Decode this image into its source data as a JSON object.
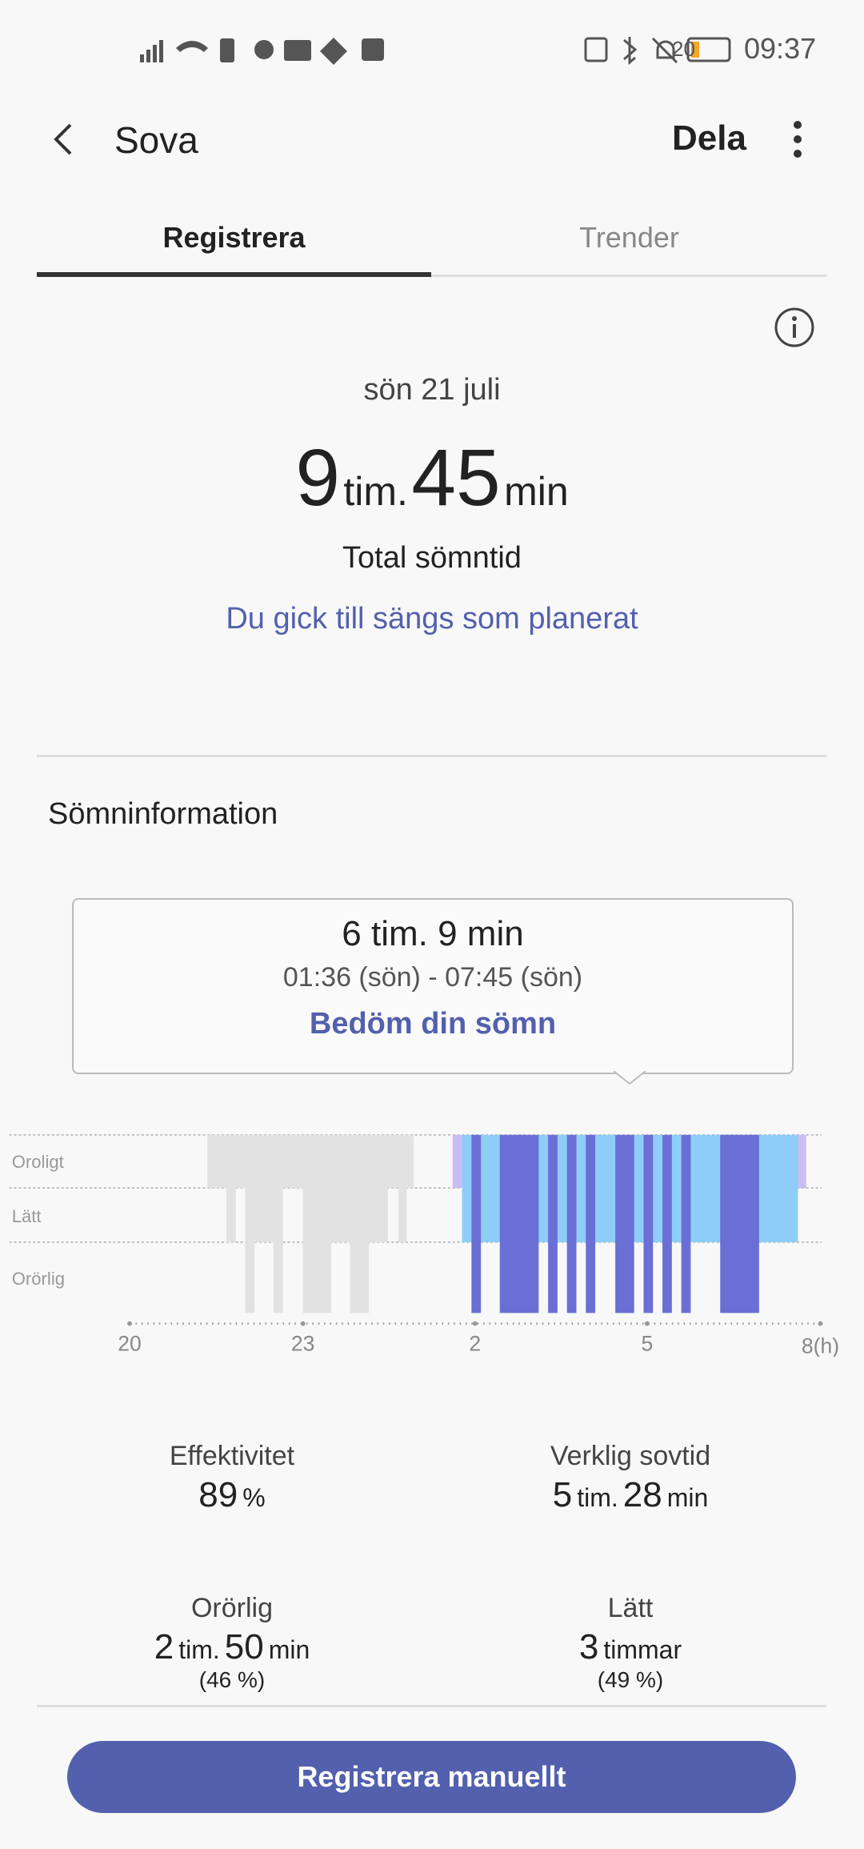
{
  "status_bar": {
    "time": "09:37",
    "battery": "20"
  },
  "header": {
    "title": "Sova",
    "share": "Dela"
  },
  "tabs": [
    "Registrera",
    "Trender"
  ],
  "summary": {
    "date": "sön 21 juli",
    "hours": "9",
    "hours_unit": "tim.",
    "minutes": "45",
    "minutes_unit": "min",
    "label": "Total sömntid",
    "note": "Du gick till sängs som planerat"
  },
  "section_title": "Sömninformation",
  "tooltip": {
    "duration": "6 tim. 9 min",
    "range": "01:36 (sön) - 07:45 (sön)",
    "action": "Bedöm din sömn"
  },
  "chart": {
    "levels": [
      "Oroligt",
      "Lätt",
      "Orörlig"
    ],
    "time_labels": [
      "20",
      "23",
      "2",
      "5",
      "8(h)"
    ]
  },
  "stats": [
    {
      "label": "Effektivitet",
      "parts": [
        "89",
        "%"
      ]
    },
    {
      "label": "Verklig sovtid",
      "parts": [
        "5",
        "tim.",
        "28",
        "min"
      ]
    },
    {
      "label": "Orörlig",
      "parts": [
        "2",
        "tim.",
        "50",
        "min"
      ],
      "share": "(46 %)"
    },
    {
      "label": "Lätt",
      "parts": [
        "3",
        "timmar"
      ],
      "share": "(49 %)"
    }
  ],
  "button": "Registrera manuellt"
}
